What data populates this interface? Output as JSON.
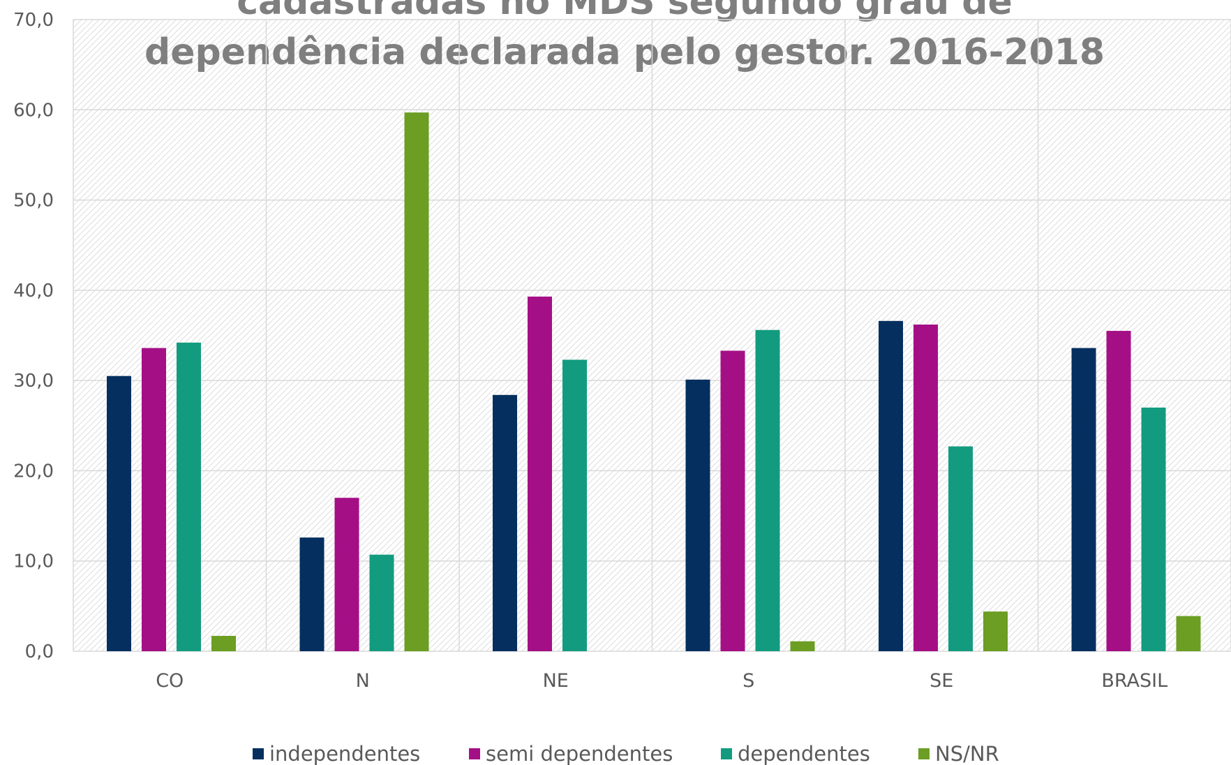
{
  "chart_data": {
    "type": "bar",
    "title_lines": [
      "cadastradas no MDS segundo grau de",
      "dependência declarada pelo gestor. 2016-2018"
    ],
    "categories": [
      "CO",
      "N",
      "NE",
      "S",
      "SE",
      "BRASIL"
    ],
    "series": [
      {
        "name": "independentes",
        "color": "#042f5f",
        "values": [
          30.5,
          12.6,
          28.4,
          30.1,
          36.6,
          33.6
        ]
      },
      {
        "name": "semi dependentes",
        "color": "#a50f86",
        "values": [
          33.6,
          17.0,
          39.3,
          33.3,
          36.2,
          35.5
        ]
      },
      {
        "name": "dependentes",
        "color": "#139b7f",
        "values": [
          34.2,
          10.7,
          32.3,
          35.6,
          22.7,
          27.0
        ]
      },
      {
        "name": "NS/NR",
        "color": "#6b9e22",
        "values": [
          1.7,
          59.7,
          null,
          1.1,
          4.4,
          3.9
        ]
      }
    ],
    "ylim": [
      0,
      70
    ],
    "yticks": [
      {
        "value": 0,
        "label": "0,0"
      },
      {
        "value": 10,
        "label": "10,0"
      },
      {
        "value": 20,
        "label": "20,0"
      },
      {
        "value": 30,
        "label": "30,0"
      },
      {
        "value": 40,
        "label": "40,0"
      },
      {
        "value": 50,
        "label": "50,0"
      },
      {
        "value": 60,
        "label": "60,0"
      },
      {
        "value": 70,
        "label": "70,0"
      }
    ],
    "grid": true,
    "legend": "bottom"
  }
}
